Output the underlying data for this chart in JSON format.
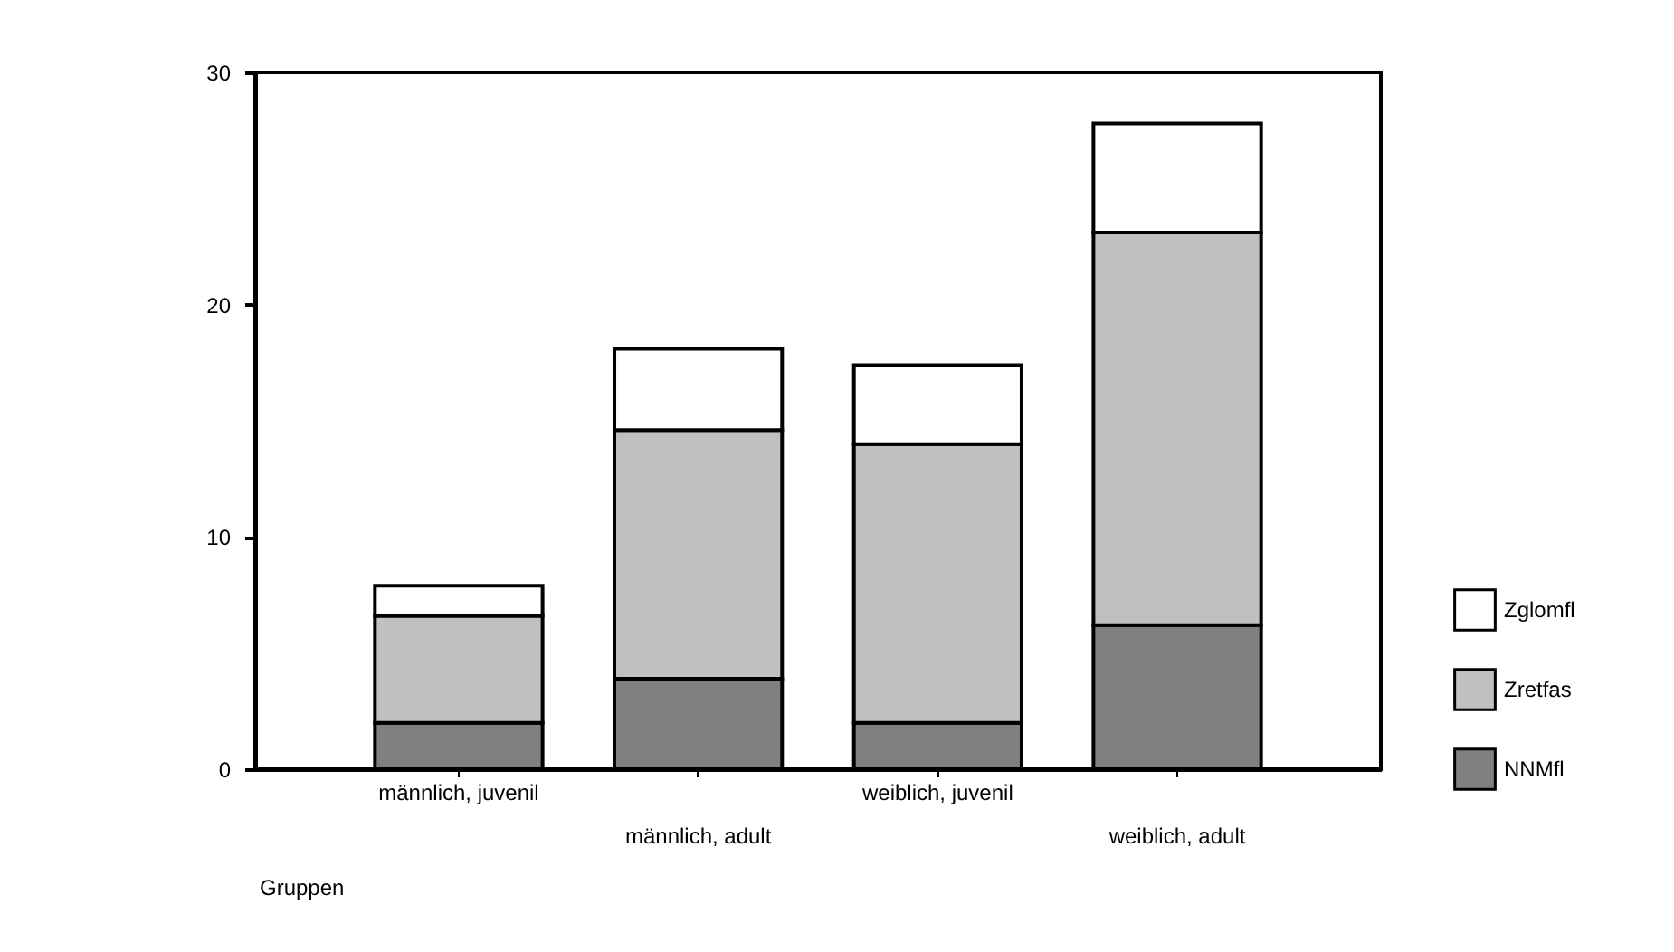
{
  "chart_data": {
    "type": "bar",
    "stacked": true,
    "xlabel": "Gruppen",
    "categories": [
      "männlich, juvenil",
      "männlich, adult",
      "weiblich, juvenil",
      "weiblich, adult"
    ],
    "series": [
      {
        "name": "NNMfl",
        "color": "#808080",
        "values": [
          2.0,
          3.9,
          2.0,
          6.2
        ]
      },
      {
        "name": "Zretfas",
        "color": "#c0c0c0",
        "values": [
          4.6,
          10.7,
          12.0,
          16.9
        ]
      },
      {
        "name": "Zglomfl",
        "color": "#ffffff",
        "values": [
          1.3,
          3.5,
          3.4,
          4.7
        ]
      }
    ],
    "ylim": [
      0,
      30
    ],
    "yticks": [
      0,
      10,
      20,
      30
    ],
    "grid": false,
    "legend": "right"
  }
}
